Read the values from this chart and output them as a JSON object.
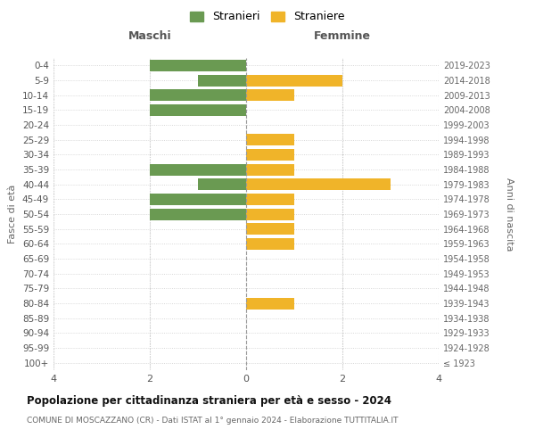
{
  "age_groups": [
    "100+",
    "95-99",
    "90-94",
    "85-89",
    "80-84",
    "75-79",
    "70-74",
    "65-69",
    "60-64",
    "55-59",
    "50-54",
    "45-49",
    "40-44",
    "35-39",
    "30-34",
    "25-29",
    "20-24",
    "15-19",
    "10-14",
    "5-9",
    "0-4"
  ],
  "birth_years": [
    "≤ 1923",
    "1924-1928",
    "1929-1933",
    "1934-1938",
    "1939-1943",
    "1944-1948",
    "1949-1953",
    "1954-1958",
    "1959-1963",
    "1964-1968",
    "1969-1973",
    "1974-1978",
    "1979-1983",
    "1984-1988",
    "1989-1993",
    "1994-1998",
    "1999-2003",
    "2004-2008",
    "2009-2013",
    "2014-2018",
    "2019-2023"
  ],
  "maschi": [
    0,
    0,
    0,
    0,
    0,
    0,
    0,
    0,
    0,
    0,
    2,
    2,
    1,
    2,
    0,
    0,
    0,
    2,
    2,
    1,
    2
  ],
  "femmine": [
    0,
    0,
    0,
    0,
    1,
    0,
    0,
    0,
    1,
    1,
    1,
    1,
    3,
    1,
    1,
    1,
    0,
    0,
    1,
    2,
    0
  ],
  "male_color": "#6a9a52",
  "female_color": "#f0b429",
  "title": "Popolazione per cittadinanza straniera per età e sesso - 2024",
  "subtitle": "COMUNE DI MOSCAZZANO (CR) - Dati ISTAT al 1° gennaio 2024 - Elaborazione TUTTITALIA.IT",
  "legend_male": "Stranieri",
  "legend_female": "Straniere",
  "xlabel_left": "Maschi",
  "xlabel_right": "Femmine",
  "ylabel_left": "Fasce di età",
  "ylabel_right": "Anni di nascita",
  "xlim": 4,
  "background_color": "#ffffff",
  "grid_color": "#cccccc"
}
